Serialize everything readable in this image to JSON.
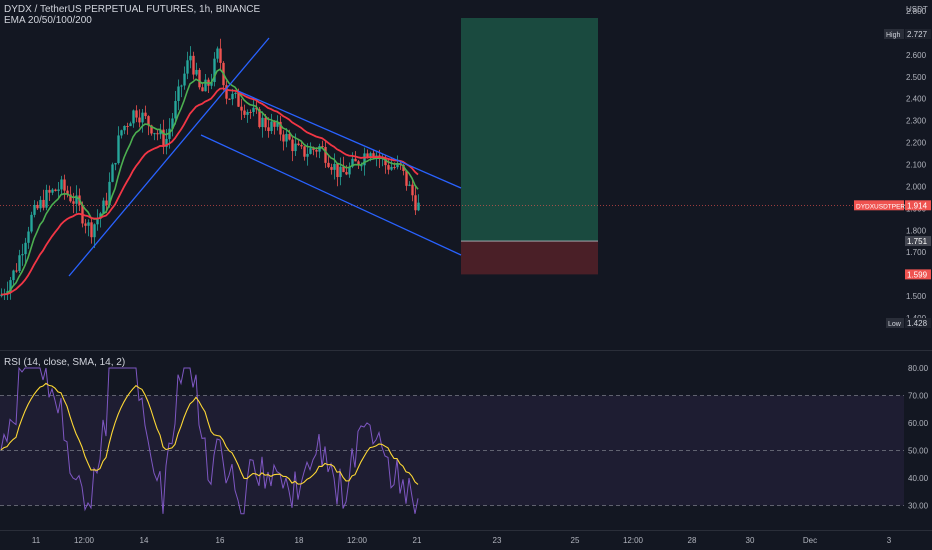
{
  "header": {
    "title": "DYDX / TetherUS PERPETUAL FUTURES, 1h, BINANCE",
    "indicator": "EMA 20/50/100/200"
  },
  "rsi_label": "RSI (14, close, SMA, 14, 2)",
  "price_axis": {
    "unit": "USDT",
    "ticks": [
      "2.800",
      "2.700",
      "2.600",
      "2.500",
      "2.400",
      "2.300",
      "2.200",
      "2.100",
      "2.000",
      "1.900",
      "1.800",
      "1.700",
      "1.600",
      "1.500",
      "1.400"
    ],
    "high_label": "High",
    "high_value": "2.727",
    "low_label": "Low",
    "low_value": "1.428",
    "current_symbol": "DYDXUSDTPERP",
    "current_value": "1.914",
    "entry_value": "1.751",
    "stop_value": "1.599"
  },
  "rsi_axis": {
    "ticks": [
      "80.00",
      "70.00",
      "60.00",
      "50.00",
      "40.00",
      "30.00"
    ]
  },
  "time_axis": {
    "labels": [
      "11",
      "12:00",
      "14",
      "16",
      "18",
      "12:00",
      "21",
      "23",
      "25",
      "12:00",
      "28",
      "30",
      "Dec",
      "3"
    ]
  },
  "colors": {
    "background": "#131722",
    "up": "#26a69a",
    "down": "#ef5350",
    "ema_fast": "#4caf50",
    "ema_slow": "#f23645",
    "trendline": "#2962ff",
    "rsi": "#7e57c2",
    "rsi_ma": "#fdd835",
    "target_zone": "#1a4a3f",
    "stop_zone": "#4a1f27"
  },
  "chart_data": {
    "type": "candlestick",
    "title": "DYDX / TetherUS PERPETUAL FUTURES, 1h, BINANCE",
    "x": [
      "11",
      "12:00",
      "14",
      "16",
      "18",
      "12:00",
      "21"
    ],
    "ylim": [
      1.4,
      2.8
    ],
    "path_keypoints": [
      [
        0,
        1.5
      ],
      [
        15,
        1.62
      ],
      [
        30,
        1.85
      ],
      [
        45,
        1.95
      ],
      [
        60,
        2.0
      ],
      [
        75,
        1.93
      ],
      [
        90,
        1.8
      ],
      [
        105,
        1.92
      ],
      [
        120,
        2.25
      ],
      [
        135,
        2.35
      ],
      [
        150,
        2.28
      ],
      [
        165,
        2.2
      ],
      [
        180,
        2.45
      ],
      [
        190,
        2.6
      ],
      [
        200,
        2.42
      ],
      [
        210,
        2.48
      ],
      [
        218,
        2.62
      ],
      [
        226,
        2.42
      ],
      [
        240,
        2.38
      ],
      [
        260,
        2.3
      ],
      [
        280,
        2.25
      ],
      [
        300,
        2.15
      ],
      [
        320,
        2.18
      ],
      [
        340,
        2.05
      ],
      [
        355,
        2.1
      ],
      [
        370,
        2.18
      ],
      [
        385,
        2.1
      ],
      [
        400,
        2.08
      ],
      [
        410,
        1.98
      ],
      [
        417,
        1.91
      ]
    ],
    "high": 2.727,
    "low": 1.428,
    "last": 1.914,
    "trendlines": [
      {
        "from": [
          "10 18:00",
          1.72
        ],
        "to": [
          "15 20:00",
          2.76
        ]
      },
      {
        "from": [
          "16 00:00",
          2.49
        ],
        "to": [
          "22 06:00",
          2.03
        ]
      },
      {
        "from": [
          "15 04:00",
          2.27
        ],
        "to": [
          "22 06:00",
          1.75
        ]
      }
    ],
    "position": {
      "entry": 1.751,
      "target": 2.8,
      "stop": 1.599
    },
    "rsi": {
      "ylim": [
        25,
        85
      ],
      "levels": [
        70,
        50,
        30
      ]
    }
  }
}
